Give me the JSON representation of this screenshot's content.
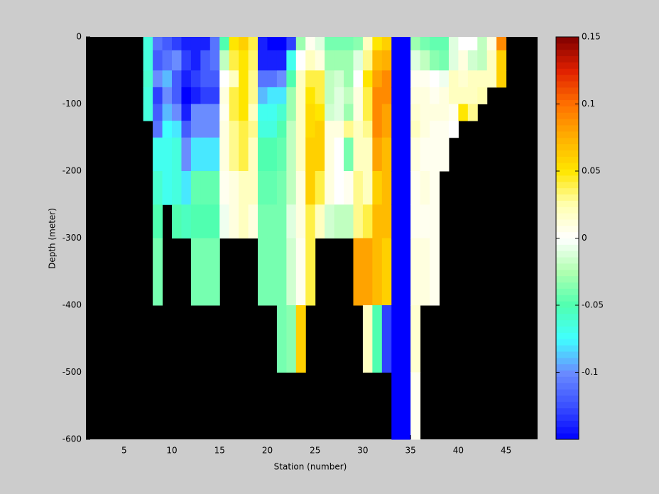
{
  "chart_data": {
    "type": "heatmap",
    "xlabel": "Station (number)",
    "ylabel": "Depth (meter)",
    "xlim": [
      1,
      48.3
    ],
    "ylim": [
      -600,
      0
    ],
    "xticks": [
      5,
      10,
      15,
      20,
      25,
      30,
      35,
      40,
      45
    ],
    "yticks": [
      0,
      -100,
      -200,
      -300,
      -400,
      -500,
      -600
    ],
    "background": "#000000",
    "x_bins": [
      7,
      8,
      9,
      10,
      11,
      12,
      13,
      14,
      15,
      16,
      17,
      18,
      19,
      20,
      21,
      22,
      23,
      24,
      25,
      26,
      27,
      28,
      29,
      30,
      31,
      32,
      33,
      34,
      35,
      36,
      37,
      38,
      39,
      40,
      41,
      42,
      43,
      44,
      45
    ],
    "y_bins": [
      0,
      -20,
      -50,
      -75,
      -100,
      -125,
      -150,
      -200,
      -250,
      -300,
      -400,
      -500,
      -600
    ],
    "z": [
      [
        -0.065,
        -0.065,
        -0.06,
        -0.065,
        -0.065,
        null,
        null,
        null,
        null,
        null,
        null,
        null
      ],
      [
        -0.11,
        -0.12,
        -0.1,
        -0.13,
        -0.12,
        -0.11,
        -0.07,
        -0.06,
        -0.05,
        -0.04,
        null,
        null
      ],
      [
        -0.12,
        -0.11,
        -0.09,
        -0.1,
        -0.09,
        -0.075,
        -0.07,
        -0.07,
        null,
        null,
        null,
        null
      ],
      [
        -0.13,
        -0.1,
        -0.12,
        -0.12,
        -0.1,
        -0.08,
        -0.065,
        -0.065,
        -0.05,
        null,
        null,
        null
      ],
      [
        -0.14,
        -0.13,
        -0.14,
        -0.15,
        -0.14,
        -0.12,
        -0.1,
        -0.08,
        -0.055,
        null,
        null,
        null
      ],
      [
        -0.14,
        -0.14,
        -0.13,
        -0.14,
        -0.1,
        -0.1,
        -0.08,
        -0.045,
        -0.05,
        -0.04,
        null,
        null
      ],
      [
        -0.14,
        -0.12,
        -0.12,
        -0.13,
        -0.1,
        -0.1,
        -0.08,
        -0.045,
        -0.05,
        -0.04,
        null,
        null
      ],
      [
        -0.11,
        -0.11,
        -0.12,
        -0.13,
        -0.1,
        -0.1,
        -0.08,
        -0.045,
        -0.05,
        -0.04,
        null,
        null
      ],
      [
        -0.05,
        -0.02,
        0,
        0.01,
        0.005,
        0.01,
        0.01,
        0.005,
        -0.005,
        null,
        null,
        null
      ],
      [
        0.05,
        0.04,
        0.02,
        0.04,
        0.04,
        0.03,
        0.03,
        0.01,
        0.01,
        null,
        null,
        null
      ],
      [
        0.06,
        0.05,
        0.05,
        0.05,
        0.05,
        0.04,
        0.04,
        0.02,
        0.02,
        null,
        null,
        null
      ],
      [
        0.04,
        0.035,
        0.03,
        0.03,
        0.02,
        0.03,
        0.02,
        0.02,
        0.01,
        null,
        null,
        null
      ],
      [
        -0.14,
        -0.14,
        -0.11,
        -0.09,
        -0.07,
        -0.065,
        -0.05,
        -0.045,
        -0.04,
        -0.04,
        null,
        null
      ],
      [
        -0.15,
        -0.14,
        -0.11,
        -0.08,
        -0.07,
        -0.065,
        -0.05,
        -0.045,
        -0.04,
        -0.04,
        null,
        null
      ],
      [
        -0.15,
        -0.14,
        -0.1,
        -0.08,
        -0.06,
        -0.05,
        -0.045,
        -0.04,
        -0.04,
        -0.04,
        -0.04,
        null
      ],
      [
        -0.13,
        -0.07,
        -0.05,
        -0.03,
        -0.03,
        -0.02,
        -0.02,
        -0.02,
        -0.01,
        -0.015,
        -0.035,
        null
      ],
      [
        -0.03,
        0,
        0.02,
        0.02,
        0.02,
        0.02,
        0.02,
        0.01,
        0.01,
        0.005,
        0.06,
        null
      ],
      [
        0.005,
        0.02,
        0.04,
        0.05,
        0.055,
        0.055,
        0.06,
        0.06,
        0.04,
        0.04,
        null,
        null
      ],
      [
        -0.01,
        0.01,
        0.04,
        0.04,
        0.05,
        0.06,
        0.06,
        0.04,
        0.02,
        null,
        null,
        null
      ],
      [
        -0.04,
        -0.03,
        -0.02,
        -0.02,
        -0.015,
        0.01,
        0.01,
        0.01,
        -0.015,
        null,
        null,
        null
      ],
      [
        -0.04,
        -0.03,
        -0.015,
        -0.01,
        -0.01,
        0.01,
        0,
        0,
        -0.02,
        null,
        null,
        null
      ],
      [
        -0.04,
        -0.03,
        -0.03,
        -0.02,
        -0.03,
        0.03,
        -0.04,
        0.005,
        -0.02,
        null,
        null,
        null
      ],
      [
        -0.035,
        -0.01,
        0,
        0.01,
        0.01,
        0.02,
        0.02,
        0.03,
        0.03,
        0.08,
        null,
        null
      ],
      [
        0.02,
        0.03,
        0.05,
        0.04,
        0.04,
        0.03,
        0.02,
        0.02,
        0.04,
        0.08,
        0.02,
        null
      ],
      [
        0.05,
        0.07,
        0.08,
        0.09,
        0.09,
        0.09,
        0.08,
        0.06,
        0.07,
        0.07,
        -0.05,
        null
      ],
      [
        0.06,
        0.075,
        0.09,
        0.09,
        0.08,
        0.08,
        0.07,
        0.07,
        0.07,
        0.06,
        -0.13,
        null
      ],
      [
        -0.15,
        -0.15,
        -0.15,
        -0.15,
        -0.15,
        -0.15,
        -0.15,
        -0.15,
        -0.15,
        -0.15,
        -0.15,
        -0.15
      ],
      [
        -0.15,
        -0.15,
        -0.15,
        -0.15,
        -0.15,
        -0.15,
        -0.15,
        -0.15,
        -0.15,
        -0.15,
        -0.15,
        -0.15
      ],
      [
        -0.03,
        -0.01,
        0.005,
        0.01,
        0.015,
        0.02,
        0.01,
        0.005,
        0.005,
        0.01,
        0.015,
        0.005
      ],
      [
        -0.04,
        -0.02,
        0.005,
        0.01,
        0.01,
        0.01,
        0.005,
        0.01,
        0.005,
        0.01,
        null,
        null
      ],
      [
        -0.045,
        -0.035,
        0,
        0.005,
        0.01,
        0.005,
        0.005,
        0.005,
        0.005,
        0.005,
        null,
        null
      ],
      [
        -0.045,
        -0.04,
        -0.005,
        0.01,
        0.01,
        0.005,
        0.005,
        null,
        null,
        null,
        null,
        null
      ],
      [
        -0.01,
        -0.01,
        0.02,
        0.02,
        0.005,
        0,
        null,
        null,
        null,
        null,
        null,
        null
      ],
      [
        0,
        0.01,
        0.015,
        0.02,
        0.05,
        null,
        null,
        null,
        null,
        null,
        null,
        null
      ],
      [
        0,
        -0.015,
        0.02,
        0.02,
        0.03,
        null,
        null,
        null,
        null,
        null,
        null,
        null
      ],
      [
        -0.02,
        -0.02,
        0.02,
        0.025,
        null,
        null,
        null,
        null,
        null,
        null,
        null,
        null
      ],
      [
        0.01,
        0.02,
        0.02,
        null,
        null,
        null,
        null,
        null,
        null,
        null,
        null,
        null
      ],
      [
        0.09,
        0.06,
        0.06,
        null,
        null,
        null,
        null,
        null,
        null,
        null,
        null,
        null
      ]
    ],
    "clim": [
      -0.15,
      0.15
    ],
    "cticks": [
      -0.1,
      -0.05,
      0,
      0.05,
      0.1,
      0.15
    ],
    "colormap": [
      "#0000ff",
      "#3a50ff",
      "#6a8cff",
      "#40ffff",
      "#50ffb0",
      "#b0ffb0",
      "#ffffff",
      "#ffffb0",
      "#ffe600",
      "#ffb000",
      "#ff7000",
      "#e02000",
      "#800000"
    ]
  }
}
